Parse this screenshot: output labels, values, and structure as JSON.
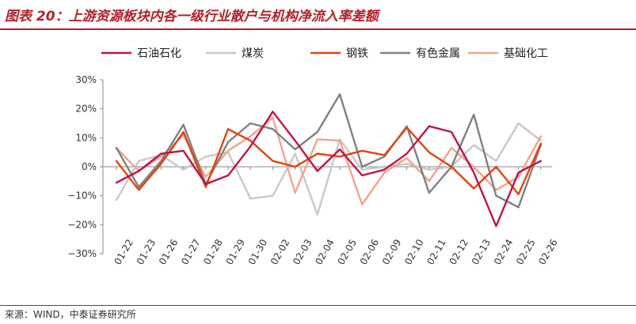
{
  "header": {
    "title": "图表 20：上游资源板块内各一级行业散户与机构净流入率差额"
  },
  "footer": {
    "source": "来源：WIND，中泰证券研究所"
  },
  "chart_data": {
    "type": "line",
    "categories": [
      "01-22",
      "01-23",
      "01-26",
      "01-27",
      "01-28",
      "01-29",
      "01-30",
      "02-02",
      "02-03",
      "02-04",
      "02-05",
      "02-06",
      "02-09",
      "02-10",
      "02-11",
      "02-12",
      "02-13",
      "02-24",
      "02-25",
      "02-26"
    ],
    "ylim": [
      -30,
      30
    ],
    "yticks": [
      -30,
      -20,
      -10,
      0,
      10,
      20,
      30
    ],
    "ytick_labels": [
      "−30%",
      "−20%",
      "−10%",
      "0%",
      "10%",
      "20%",
      "30%"
    ],
    "legend_position": "top",
    "grid": false,
    "series": [
      {
        "name": "石油石化",
        "color": "#c0144a",
        "values": [
          -5.5,
          -1.5,
          4.5,
          5.5,
          -6,
          -3,
          7,
          19,
          9,
          -1.5,
          6,
          -3,
          -1,
          4.5,
          14,
          12,
          -2,
          -20.5,
          -2,
          2
        ]
      },
      {
        "name": "煤炭",
        "color": "#c8c8c8",
        "values": [
          -11.5,
          2,
          4,
          -1,
          3.5,
          5,
          -11,
          -10,
          4.5,
          -16.5,
          9.5,
          -1,
          0,
          1,
          -1,
          0,
          7.5,
          2,
          15,
          9
        ]
      },
      {
        "name": "钢铁",
        "color": "#e0440f",
        "values": [
          2,
          -8,
          1,
          12,
          -7,
          13,
          9,
          2,
          0,
          4.5,
          3.5,
          5.5,
          4,
          13.5,
          5,
          0,
          -7.5,
          0,
          -9.5,
          8
        ]
      },
      {
        "name": "有色金属",
        "color": "#808080",
        "values": [
          6.5,
          -7,
          2,
          14.5,
          -6,
          8.5,
          15,
          13,
          6,
          12,
          25,
          0,
          3.5,
          14,
          -9,
          0,
          18,
          -10,
          -14,
          7.5
        ]
      },
      {
        "name": "基础化工",
        "color": "#f4a28c",
        "values": [
          6.5,
          -1.5,
          3.5,
          11,
          -3.5,
          5.5,
          10.5,
          17,
          -9,
          9.5,
          9,
          -13,
          -2,
          3,
          -5,
          6.5,
          0,
          -8,
          -3.5,
          10.5
        ]
      }
    ]
  }
}
